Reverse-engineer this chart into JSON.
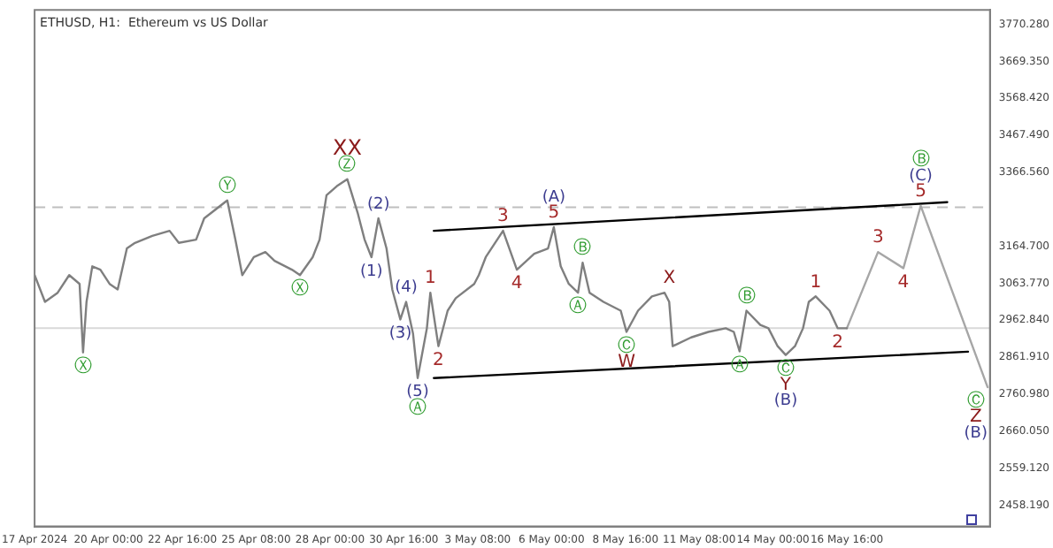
{
  "chart_data": {
    "type": "line",
    "title": "ETHUSD, H1:  Ethereum vs US Dollar",
    "series": [
      {
        "color": "#7f7f7f",
        "x": [
          "2024-04-17T08:00",
          "2024-04-17T17:00",
          "2024-04-18T04:00",
          "2024-04-18T14:00",
          "2024-04-18T23:00",
          "2024-04-19T02:00",
          "2024-04-19T05:00",
          "2024-04-19T10:00",
          "2024-04-19T17:00",
          "2024-04-20T01:00",
          "2024-04-20T08:00",
          "2024-04-20T16:00",
          "2024-04-20T23:00",
          "2024-04-21T14:00",
          "2024-04-22T05:00",
          "2024-04-22T13:00",
          "2024-04-23T04:00",
          "2024-04-23T11:00",
          "2024-04-24T07:00",
          "2024-04-24T14:00",
          "2024-04-24T20:00",
          "2024-04-25T06:00",
          "2024-04-25T16:00",
          "2024-04-26T00:00",
          "2024-04-26T15:00",
          "2024-04-26T22:00",
          "2024-04-27T09:00",
          "2024-04-27T15:00",
          "2024-04-27T21:00",
          "2024-04-28T06:00",
          "2024-04-28T15:00",
          "2024-04-29T00:00",
          "2024-04-29T06:00",
          "2024-04-29T12:00",
          "2024-04-29T18:00",
          "2024-04-30T01:00",
          "2024-04-30T06:00",
          "2024-04-30T13:00",
          "2024-04-30T18:00",
          "2024-05-01T00:00",
          "2024-05-01T04:00",
          "2024-05-01T12:00",
          "2024-05-01T15:00",
          "2024-05-01T22:00",
          "2024-05-02T06:00",
          "2024-05-02T13:00",
          "2024-05-03T05:00",
          "2024-05-03T09:00",
          "2024-05-03T15:00",
          "2024-05-04T06:00",
          "2024-05-04T18:00",
          "2024-05-05T09:00",
          "2024-05-05T21:00",
          "2024-05-06T02:00",
          "2024-05-06T08:00",
          "2024-05-06T15:00",
          "2024-05-06T23:00",
          "2024-05-07T03:00",
          "2024-05-07T09:00",
          "2024-05-07T21:00",
          "2024-05-08T12:00",
          "2024-05-08T17:00",
          "2024-05-09T03:00",
          "2024-05-09T15:00",
          "2024-05-10T02:00",
          "2024-05-10T06:00",
          "2024-05-10T09:00",
          "2024-05-11T01:00",
          "2024-05-11T16:00",
          "2024-05-12T07:00",
          "2024-05-12T14:00",
          "2024-05-12T19:00",
          "2024-05-13T01:00",
          "2024-05-13T13:00",
          "2024-05-13T20:00",
          "2024-05-14T04:00",
          "2024-05-14T11:00",
          "2024-05-14T19:00",
          "2024-05-15T02:00",
          "2024-05-15T07:00",
          "2024-05-15T13:00",
          "2024-05-16T01:00",
          "2024-05-16T08:00",
          "2024-05-16T16:00"
        ],
        "values": [
          3086,
          3013,
          3038,
          3086,
          3062,
          2875,
          3013,
          3110,
          3101,
          3062,
          3047,
          3159,
          3174,
          3193,
          3207,
          3174,
          3183,
          3241,
          3290,
          3183,
          3086,
          3135,
          3149,
          3125,
          3101,
          3086,
          3135,
          3183,
          3304,
          3329,
          3348,
          3256,
          3183,
          3135,
          3241,
          3159,
          3047,
          2965,
          3013,
          2926,
          2805,
          2941,
          3038,
          2892,
          2989,
          3023,
          3062,
          3086,
          3135,
          3207,
          3101,
          3144,
          3159,
          3217,
          3110,
          3062,
          3038,
          3120,
          3038,
          3013,
          2989,
          2931,
          2989,
          3028,
          3038,
          3013,
          2892,
          2916,
          2931,
          2941,
          2931,
          2878,
          2989,
          2950,
          2941,
          2892,
          2868,
          2892,
          2941,
          3013,
          3028,
          2989,
          2941,
          2941
        ]
      },
      {
        "color": "#a6a6a6",
        "x": [
          "2024-05-16T16:00",
          "2024-05-17T19:00",
          "2024-05-18T17:00",
          "2024-05-19T08:00",
          "2024-05-21T18:00"
        ],
        "values": [
          2941,
          3149,
          3105,
          3275,
          2780
        ]
      },
      {
        "color": "#000000",
        "x": [
          "2024-05-01T18:00",
          "2024-05-20T07:00"
        ],
        "values": [
          3207,
          3285
        ]
      },
      {
        "color": "#000000",
        "x": [
          "2024-05-01T18:00",
          "2024-05-21T01:00"
        ],
        "values": [
          2805,
          2877
        ]
      }
    ],
    "xlim": [
      "2024-04-17T08:00",
      "2024-05-21T20:00"
    ],
    "ylim": [
      2400,
      3810
    ],
    "xticks": [
      {
        "value": "2024-04-17T08:00",
        "label": "17 Apr 2024"
      },
      {
        "value": "2024-04-20T00:00",
        "label": "20 Apr 00:00"
      },
      {
        "value": "2024-04-22T16:00",
        "label": "22 Apr 16:00"
      },
      {
        "value": "2024-04-25T08:00",
        "label": "25 Apr 08:00"
      },
      {
        "value": "2024-04-28T00:00",
        "label": "28 Apr 00:00"
      },
      {
        "value": "2024-04-30T16:00",
        "label": "30 Apr 16:00"
      },
      {
        "value": "2024-05-03T08:00",
        "label": "3 May 08:00"
      },
      {
        "value": "2024-05-06T00:00",
        "label": "6 May 00:00"
      },
      {
        "value": "2024-05-08T16:00",
        "label": "8 May 16:00"
      },
      {
        "value": "2024-05-11T08:00",
        "label": "11 May 08:00"
      },
      {
        "value": "2024-05-14T00:00",
        "label": "14 May 00:00"
      },
      {
        "value": "2024-05-16T16:00",
        "label": "16 May 16:00"
      }
    ],
    "yticks": [
      {
        "value": 2458.19,
        "label": "2458.190"
      },
      {
        "value": 2559.12,
        "label": "2559.120"
      },
      {
        "value": 2660.05,
        "label": "2660.050"
      },
      {
        "value": 2760.98,
        "label": "2760.980"
      },
      {
        "value": 2861.91,
        "label": "2861.910"
      },
      {
        "value": 2962.84,
        "label": "2962.840"
      },
      {
        "value": 3063.77,
        "label": "3063.770"
      },
      {
        "value": 3164.7,
        "label": "3164.700"
      },
      {
        "value": 3366.56,
        "label": "3366.560"
      },
      {
        "value": 3467.49,
        "label": "3467.490"
      },
      {
        "value": 3568.42,
        "label": "3568.420"
      },
      {
        "value": 3669.35,
        "label": "3669.350"
      },
      {
        "value": 3770.28,
        "label": "3770.280"
      }
    ],
    "ref_lines": [
      {
        "axis": "y",
        "value": 3271,
        "color": "#bfbfbf",
        "line_style": "dashed"
      },
      {
        "axis": "y",
        "value": 2941,
        "color": "#d9d9d9",
        "line_style": "solid"
      }
    ],
    "grid": false,
    "legend": false,
    "marker": "none",
    "line_style": "solid",
    "annotations": [
      {
        "text": "Ⓩ",
        "x": "2024-04-28T15:00",
        "y": 3348
      },
      {
        "text": "XX",
        "x": "2024-04-28T15:00",
        "y": 3348
      },
      {
        "text": "Ⓨ",
        "x": "2024-04-24T07:00",
        "y": 3290
      },
      {
        "text": "(2)",
        "x": "2024-04-29T18:00",
        "y": 3241
      },
      {
        "text": "(1)",
        "x": "2024-04-29T12:00",
        "y": 3135
      },
      {
        "text": "Ⓧ",
        "x": "2024-04-26T22:00",
        "y": 3086
      },
      {
        "text": "Ⓧ",
        "x": "2024-04-19T02:00",
        "y": 2875
      },
      {
        "text": "(4)",
        "x": "2024-04-30T18:00",
        "y": 3013
      },
      {
        "text": "1",
        "x": "2024-05-01T15:00",
        "y": 3038
      },
      {
        "text": "(3)",
        "x": "2024-04-30T13:00",
        "y": 2965
      },
      {
        "text": "2",
        "x": "2024-05-01T22:00",
        "y": 2892
      },
      {
        "text": "(5)",
        "x": "2024-05-01T04:00",
        "y": 2805
      },
      {
        "text": "Ⓐ",
        "x": "2024-05-01T04:00",
        "y": 2805
      },
      {
        "text": "3",
        "x": "2024-05-04T06:00",
        "y": 3207
      },
      {
        "text": "4",
        "x": "2024-05-04T18:00",
        "y": 3101
      },
      {
        "text": "5",
        "x": "2024-05-06T02:00",
        "y": 3217
      },
      {
        "text": "(A)",
        "x": "2024-05-06T02:00",
        "y": 3217
      },
      {
        "text": "Ⓑ",
        "x": "2024-05-07T03:00",
        "y": 3120
      },
      {
        "text": "Ⓐ",
        "x": "2024-05-06T23:00",
        "y": 3038
      },
      {
        "text": "Ⓒ",
        "x": "2024-05-08T17:00",
        "y": 2931
      },
      {
        "text": "W",
        "x": "2024-05-08T17:00",
        "y": 2931
      },
      {
        "text": "X",
        "x": "2024-05-10T06:00",
        "y": 3038
      },
      {
        "text": "Ⓑ",
        "x": "2024-05-13T01:00",
        "y": 2989
      },
      {
        "text": "Ⓐ",
        "x": "2024-05-12T19:00",
        "y": 2878
      },
      {
        "text": "Ⓒ",
        "x": "2024-05-14T11:00",
        "y": 2868
      },
      {
        "text": "Y",
        "x": "2024-05-14T11:00",
        "y": 2868
      },
      {
        "text": "(B)",
        "x": "2024-05-14T11:00",
        "y": 2868
      },
      {
        "text": "1",
        "x": "2024-05-15T13:00",
        "y": 3028
      },
      {
        "text": "2",
        "x": "2024-05-16T08:00",
        "y": 2941
      },
      {
        "text": "3",
        "x": "2024-05-17T19:00",
        "y": 3149
      },
      {
        "text": "4",
        "x": "2024-05-18T17:00",
        "y": 3105
      },
      {
        "text": "5",
        "x": "2024-05-19T08:00",
        "y": 3275
      },
      {
        "text": "(C)",
        "x": "2024-05-19T08:00",
        "y": 3275
      },
      {
        "text": "Ⓑ",
        "x": "2024-05-19T08:00",
        "y": 3275
      },
      {
        "text": "Ⓒ",
        "x": "2024-05-21T18:00",
        "y": 2780
      },
      {
        "text": "Z",
        "x": "2024-05-21T18:00",
        "y": 2780
      },
      {
        "text": "(B)",
        "x": "2024-05-21T18:00",
        "y": 2780
      }
    ]
  }
}
